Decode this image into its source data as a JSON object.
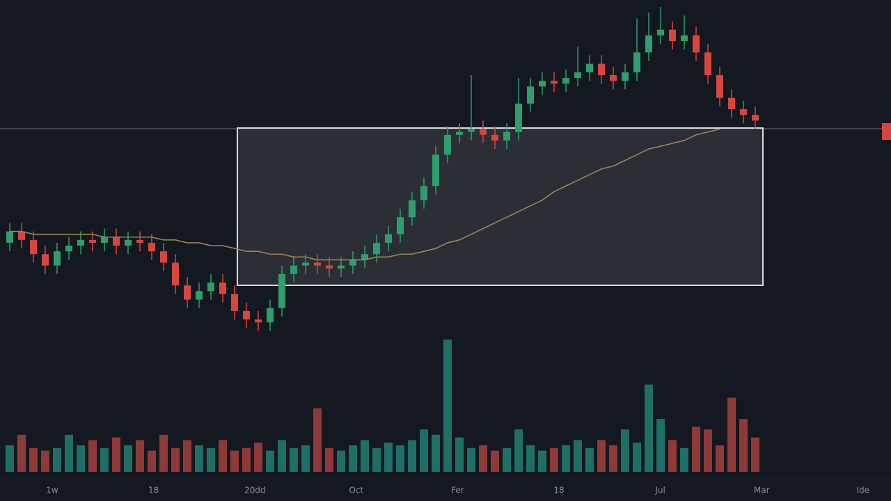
{
  "chart_data": {
    "type": "candlestick",
    "x_labels": [
      "1w",
      "18",
      "20dd",
      "Oct",
      "Fer",
      "18",
      "Jul",
      "Mar",
      "Ide"
    ],
    "open": [
      37,
      41,
      38,
      33,
      29,
      34,
      36,
      38,
      37,
      39,
      36,
      38,
      37,
      34,
      30,
      22,
      17,
      20,
      23,
      19,
      13,
      10,
      9,
      14,
      26,
      29,
      30,
      29,
      28,
      29,
      31,
      33,
      37,
      40,
      46,
      52,
      57,
      68,
      75,
      76,
      77,
      75,
      73,
      76,
      86,
      92,
      94,
      93,
      95,
      97,
      100,
      96,
      94,
      97,
      104,
      110,
      112,
      108,
      110,
      104,
      96,
      88,
      84,
      82
    ],
    "high": [
      44,
      44,
      41,
      36,
      37,
      39,
      41,
      41,
      42,
      42,
      41,
      41,
      40,
      37,
      33,
      25,
      23,
      26,
      26,
      22,
      16,
      13,
      17,
      29,
      32,
      33,
      33,
      32,
      32,
      34,
      36,
      40,
      43,
      49,
      55,
      60,
      71,
      78,
      79,
      96,
      80,
      78,
      79,
      95,
      95,
      97,
      97,
      98,
      106,
      103,
      103,
      99,
      100,
      116,
      118,
      120,
      115,
      117,
      113,
      107,
      99,
      91,
      87,
      85
    ],
    "low": [
      34,
      35,
      30,
      26,
      26,
      31,
      33,
      34,
      34,
      33,
      33,
      34,
      31,
      27,
      19,
      14,
      14,
      17,
      16,
      10,
      7,
      6,
      6,
      11,
      23,
      26,
      26,
      25,
      25,
      26,
      28,
      30,
      34,
      37,
      43,
      49,
      54,
      65,
      72,
      73,
      72,
      70,
      70,
      73,
      83,
      89,
      90,
      90,
      92,
      94,
      93,
      91,
      91,
      94,
      101,
      107,
      105,
      105,
      101,
      93,
      85,
      81,
      79,
      77
    ],
    "close": [
      41,
      38,
      33,
      29,
      34,
      36,
      38,
      37,
      39,
      36,
      38,
      37,
      34,
      30,
      22,
      17,
      20,
      23,
      19,
      13,
      10,
      9,
      14,
      26,
      29,
      30,
      29,
      28,
      29,
      31,
      33,
      37,
      40,
      46,
      52,
      57,
      68,
      75,
      76,
      77,
      75,
      73,
      76,
      86,
      92,
      94,
      93,
      95,
      97,
      100,
      96,
      94,
      97,
      104,
      110,
      112,
      108,
      110,
      104,
      96,
      88,
      84,
      82,
      80
    ],
    "volume": [
      10,
      14,
      9,
      8,
      9,
      14,
      10,
      12,
      9,
      13,
      10,
      12,
      8,
      14,
      9,
      12,
      10,
      9,
      12,
      8,
      9,
      11,
      8,
      12,
      9,
      10,
      24,
      9,
      8,
      10,
      12,
      9,
      11,
      10,
      12,
      16,
      14,
      50,
      13,
      9,
      10,
      8,
      9,
      16,
      10,
      8,
      9,
      10,
      12,
      9,
      12,
      10,
      16,
      11,
      33,
      20,
      12,
      9,
      17,
      16,
      10,
      28,
      20,
      13
    ],
    "ma": [
      41,
      41,
      40,
      40,
      40,
      40,
      40,
      40,
      39,
      39,
      39,
      39,
      39,
      38,
      38,
      37,
      37,
      36,
      36,
      35,
      34,
      34,
      33,
      33,
      32,
      32,
      31,
      31,
      31,
      31,
      31,
      32,
      32,
      33,
      33,
      34,
      35,
      37,
      38,
      40,
      42,
      44,
      46,
      48,
      50,
      52,
      55,
      57,
      59,
      61,
      63,
      64,
      66,
      68,
      70,
      71,
      72,
      73,
      75,
      76,
      77,
      null,
      null,
      null
    ],
    "ylim": [
      0,
      120
    ],
    "volume_lim": [
      0,
      50
    ],
    "up_color": "#2f9e6c",
    "down_color": "#d9463f",
    "volume_up_color": "#1f6f67",
    "volume_down_color": "#8e3a38",
    "ma_color": "#9c8750"
  }
}
